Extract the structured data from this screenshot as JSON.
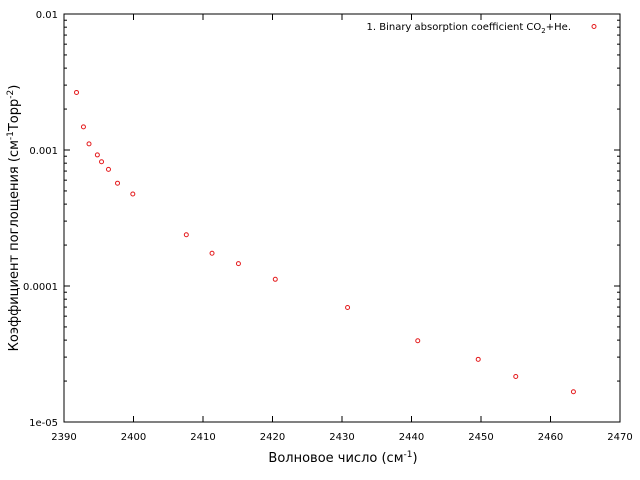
{
  "chart_data": {
    "type": "scatter",
    "xlabel": {
      "main": "Волновое число (см",
      "sup": "-1",
      "tail": ")"
    },
    "ylabel": {
      "a": "Коэффициент поглощения (см",
      "b": "-1",
      "c": "Торр",
      "d": "-2",
      "e": ")"
    },
    "xlim": [
      2390,
      2470
    ],
    "ylim": [
      1e-05,
      0.01
    ],
    "yscale": "log",
    "grid": false,
    "legend_position": "top-right",
    "x_ticks": [
      2390,
      2400,
      2410,
      2420,
      2430,
      2440,
      2450,
      2460,
      2470
    ],
    "x_tick_labels": [
      "2390",
      "2400",
      "2410",
      "2420",
      "2430",
      "2440",
      "2450",
      "2460",
      "2470"
    ],
    "y_ticks": [
      1e-05,
      0.0001,
      0.001,
      0.01
    ],
    "y_tick_labels": [
      "1e-05",
      "0.0001",
      "0.001",
      "0.01"
    ],
    "series": [
      {
        "name": {
          "a": "1. Binary absorption coefficient CO",
          "b": "2",
          "c": "+He."
        },
        "color": "#e41a1c",
        "marker": "circle-open",
        "x": [
          2391.8,
          2392.8,
          2393.6,
          2394.8,
          2395.4,
          2396.4,
          2397.7,
          2399.9,
          2407.6,
          2411.3,
          2415.1,
          2420.4,
          2430.8,
          2440.9,
          2449.6,
          2455.0,
          2463.3
        ],
        "y": [
          0.00265,
          0.00148,
          0.00111,
          0.00092,
          0.00082,
          0.00072,
          0.00057,
          0.000475,
          0.000238,
          0.000174,
          0.000146,
          0.000112,
          6.95e-05,
          3.96e-05,
          2.89e-05,
          2.16e-05,
          1.67e-05
        ]
      }
    ]
  }
}
